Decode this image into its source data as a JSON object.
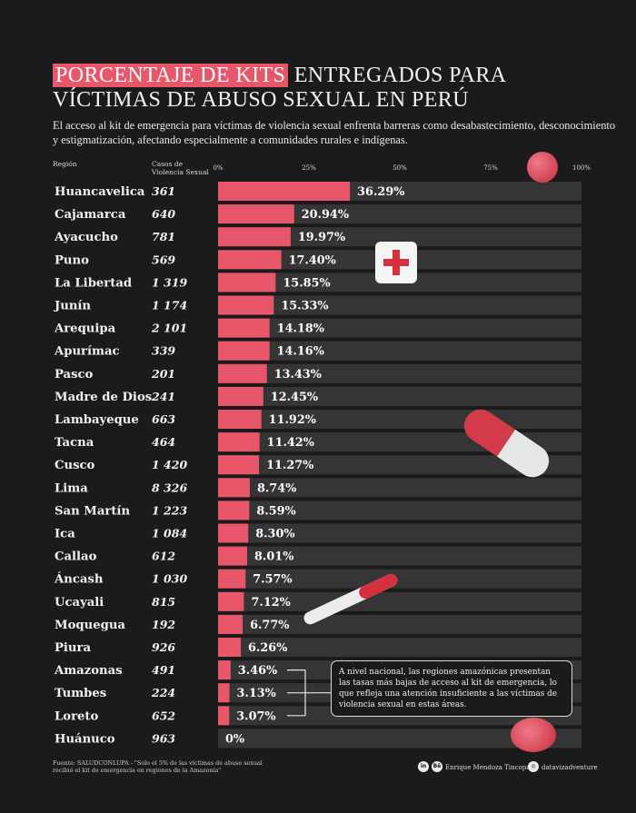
{
  "title": {
    "highlight": "PORCENTAJE DE KITS",
    "line1_rest": " ENTREGADOS PARA",
    "line2": "VÍCTIMAS DE ABUSO SEXUAL EN PERÚ"
  },
  "subtitle": "El acceso al kit de emergencia para víctimas de violencia sexual enfrenta barreras como desabastecimiento, desconocimiento y estigmatización, afectando especialmente a comunidades rurales e indígenas.",
  "headers": {
    "region": "Región",
    "cases_1": "Casos de",
    "cases_2": "Violencia Sexual"
  },
  "note": "A nivel nacional, las regiones amazónicas presentan las tasas más bajas de acceso al kit de emergencia, lo que refleja una atención insuficiente a las víctimas de violencia sexual en estas áreas.",
  "source": "Fuente: SALUDCONLUPA - \"Solo el 5% de las víctimas de abuso sexual recibió el kit de emergencia en regiones de la Amazonía\"",
  "author": "Enrique Mendoza Tincopa",
  "handle": "datavizadventure",
  "social_icons": [
    "linkedin-icon",
    "behance-icon",
    "instagram-icon"
  ],
  "colors": {
    "bar": "#e8566a",
    "track": "#353535",
    "background": "#1b1b1b",
    "accent": "#d6303f"
  },
  "chart_data": {
    "type": "bar",
    "orientation": "horizontal",
    "xlim": [
      0,
      100
    ],
    "ticks": [
      "0%",
      "25%",
      "50%",
      "75%",
      "100%"
    ],
    "categories": [
      "Huancavelica",
      "Cajamarca",
      "Ayacucho",
      "Puno",
      "La Libertad",
      "Junín",
      "Arequipa",
      "Apurímac",
      "Pasco",
      "Madre de Dios",
      "Lambayeque",
      "Tacna",
      "Cusco",
      "Lima",
      "San Martín",
      "Ica",
      "Callao",
      "Áncash",
      "Ucayali",
      "Moquegua",
      "Piura",
      "Amazonas",
      "Tumbes",
      "Loreto",
      "Huánuco"
    ],
    "cases": [
      "361",
      "640",
      "781",
      "569",
      "1 319",
      "1 174",
      "2 101",
      "339",
      "201",
      "241",
      "663",
      "464",
      "1 420",
      "8 326",
      "1 223",
      "1 084",
      "612",
      "1 030",
      "815",
      "192",
      "926",
      "491",
      "224",
      "652",
      "963"
    ],
    "values": [
      36.29,
      20.94,
      19.97,
      17.4,
      15.85,
      15.33,
      14.18,
      14.16,
      13.43,
      12.45,
      11.92,
      11.42,
      11.27,
      8.74,
      8.59,
      8.3,
      8.01,
      7.57,
      7.12,
      6.77,
      6.26,
      3.46,
      3.13,
      3.07,
      0
    ],
    "labels": [
      "36.29%",
      "20.94%",
      "19.97%",
      "17.40%",
      "15.85%",
      "15.33%",
      "14.18%",
      "14.16%",
      "13.43%",
      "12.45%",
      "11.92%",
      "11.42%",
      "11.27%",
      "8.74%",
      "8.59%",
      "8.30%",
      "8.01%",
      "7.57%",
      "7.12%",
      "6.77%",
      "6.26%",
      "3.46%",
      "3.13%",
      "3.07%",
      "0%"
    ],
    "highlighted_regions": [
      "Amazonas",
      "Tumbes",
      "Loreto"
    ]
  }
}
